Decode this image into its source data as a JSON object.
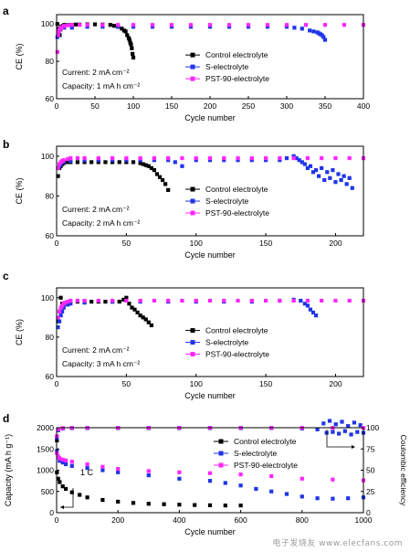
{
  "colors": {
    "control": "#000000",
    "s": "#1f35e6",
    "pst": "#ff26ff",
    "axis": "#000000"
  },
  "watermark": "电子发烧友 www.elecfans.com",
  "chart_data": [
    {
      "panel": "a",
      "type": "scatter",
      "xlabel": "Cycle number",
      "ylabel": "CE (%)",
      "xlim": [
        0,
        400
      ],
      "ylim": [
        60,
        105
      ],
      "xticks": [
        0,
        50,
        100,
        150,
        200,
        250,
        300,
        350,
        400
      ],
      "yticks": [
        60,
        80,
        100
      ],
      "notes": [
        "Current: 2 mA cm⁻²",
        "Capacity: 1 mA h cm⁻²"
      ],
      "legend_position": "right-center",
      "series": [
        {
          "name": "Control electrolyte",
          "key": "control",
          "x": [
            1,
            2,
            3,
            4,
            5,
            6,
            8,
            10,
            15,
            20,
            25,
            30,
            40,
            50,
            60,
            70,
            75,
            80,
            85,
            88,
            90,
            92,
            94,
            95,
            96,
            97,
            98,
            99,
            100
          ],
          "y": [
            100,
            96,
            97.5,
            94,
            97,
            98.5,
            99,
            99.5,
            99.5,
            99.5,
            99.7,
            99.7,
            99.8,
            99.8,
            99.7,
            99.5,
            99,
            98.5,
            97.5,
            96.5,
            96,
            94,
            92.5,
            91.5,
            90,
            89,
            87,
            84,
            82
          ]
        },
        {
          "name": "S-electrolyte",
          "key": "s",
          "x": [
            1,
            2,
            3,
            5,
            10,
            20,
            40,
            60,
            80,
            100,
            125,
            150,
            175,
            200,
            225,
            250,
            275,
            300,
            310,
            320,
            330,
            335,
            340,
            342,
            344,
            346,
            348,
            350
          ],
          "y": [
            93,
            95,
            96.5,
            97.5,
            98,
            98,
            98.5,
            98.5,
            98.5,
            98.5,
            98.5,
            98.5,
            98.5,
            98.5,
            98.5,
            98.5,
            98.5,
            98.5,
            98,
            97.5,
            96.5,
            96,
            95.5,
            95,
            94.5,
            94,
            93,
            91.5
          ]
        },
        {
          "name": "PST-90-electrolyte",
          "key": "pst",
          "x": [
            1,
            2,
            3,
            4,
            5,
            6,
            8,
            10,
            15,
            20,
            30,
            40,
            60,
            80,
            100,
            125,
            150,
            175,
            200,
            225,
            250,
            275,
            300,
            325,
            350,
            375,
            400
          ],
          "y": [
            85,
            94,
            96,
            97,
            97.5,
            98,
            98.5,
            99,
            99.3,
            99.5,
            99.5,
            99.5,
            99.5,
            99.5,
            99.5,
            99.5,
            99.5,
            99.5,
            99.5,
            99.5,
            99.5,
            99.5,
            99.5,
            99.5,
            99.5,
            99.5,
            99.5
          ]
        }
      ]
    },
    {
      "panel": "b",
      "type": "scatter",
      "xlabel": "Cycle number",
      "ylabel": "CE (%)",
      "xlim": [
        0,
        220
      ],
      "ylim": [
        60,
        105
      ],
      "xticks": [
        0,
        50,
        100,
        150,
        200
      ],
      "yticks": [
        60,
        80,
        100
      ],
      "notes": [
        "Current: 2 mA cm⁻²",
        "Capacity: 2 mA h cm⁻²"
      ],
      "legend_position": "right-center",
      "series": [
        {
          "name": "Control electrolyte",
          "key": "control",
          "x": [
            1,
            2,
            3,
            4,
            5,
            6,
            8,
            10,
            15,
            20,
            25,
            30,
            35,
            40,
            45,
            50,
            55,
            60,
            62,
            64,
            66,
            68,
            70,
            72,
            74,
            76,
            78,
            80
          ],
          "y": [
            90,
            94,
            95,
            96,
            96.5,
            97,
            97,
            97,
            97,
            97,
            97,
            97,
            97,
            97,
            97,
            97,
            97,
            96.5,
            96,
            95.5,
            95,
            94,
            93,
            91,
            89.5,
            88,
            86,
            83
          ]
        },
        {
          "name": "S-electrolyte",
          "key": "s",
          "x": [
            1,
            2,
            3,
            5,
            10,
            20,
            30,
            40,
            50,
            60,
            70,
            80,
            85,
            90,
            100,
            110,
            120,
            130,
            140,
            150,
            160,
            165,
            170,
            172,
            174,
            176,
            178,
            180,
            182,
            184,
            186,
            188,
            190,
            192,
            194,
            196,
            198,
            200,
            202,
            204,
            206,
            208,
            210,
            212
          ],
          "y": [
            94,
            95,
            96,
            97,
            97.5,
            98,
            98,
            98,
            98,
            98,
            98,
            98,
            97,
            95,
            98,
            98,
            98,
            98,
            98,
            98,
            98,
            99,
            100,
            99,
            98,
            97,
            96,
            94,
            95,
            92,
            93,
            90,
            94,
            88,
            92,
            89,
            93,
            87,
            91,
            88,
            90,
            86,
            89,
            84
          ]
        },
        {
          "name": "PST-90-electrolyte",
          "key": "pst",
          "x": [
            1,
            2,
            3,
            4,
            5,
            8,
            10,
            15,
            20,
            30,
            40,
            50,
            60,
            70,
            80,
            90,
            100,
            110,
            120,
            130,
            140,
            150,
            160,
            170,
            180,
            190,
            200,
            210,
            220
          ],
          "y": [
            94,
            96,
            97,
            97.5,
            98,
            98.5,
            99,
            99,
            99,
            99,
            99,
            99,
            99,
            99,
            99,
            99,
            99,
            99,
            99,
            99,
            99,
            99,
            99,
            99,
            99,
            99,
            99,
            99,
            99
          ]
        }
      ]
    },
    {
      "panel": "c",
      "type": "scatter",
      "xlabel": "Cycle number",
      "ylabel": "CE (%)",
      "xlim": [
        0,
        220
      ],
      "ylim": [
        60,
        105
      ],
      "xticks": [
        0,
        50,
        100,
        150,
        200
      ],
      "yticks": [
        60,
        80,
        100
      ],
      "notes": [
        "Current: 2 mA cm⁻²",
        "Capacity: 3 mA h cm⁻²"
      ],
      "legend_position": "right-center",
      "series": [
        {
          "name": "Control electrolyte",
          "key": "control",
          "x": [
            1,
            2,
            3,
            4,
            5,
            6,
            8,
            10,
            15,
            20,
            25,
            30,
            35,
            40,
            45,
            48,
            50,
            52,
            54,
            56,
            58,
            60,
            62,
            64,
            66,
            68
          ],
          "y": [
            88,
            93,
            100,
            97,
            95,
            97,
            97.5,
            98,
            98,
            98,
            98,
            98,
            98,
            98,
            98,
            99,
            100,
            97,
            95,
            94,
            92.5,
            91,
            90,
            89,
            87.5,
            86
          ]
        },
        {
          "name": "S-electrolyte",
          "key": "s",
          "x": [
            1,
            2,
            3,
            4,
            5,
            8,
            10,
            20,
            40,
            60,
            80,
            100,
            120,
            140,
            160,
            170,
            175,
            178,
            180,
            182,
            184,
            186
          ],
          "y": [
            85,
            88,
            91,
            93,
            95,
            96.5,
            97,
            97.5,
            98,
            98,
            98,
            98,
            98,
            98,
            98.5,
            99,
            98.5,
            97,
            96,
            94,
            92.5,
            91
          ]
        },
        {
          "name": "PST-90-electrolyte",
          "key": "pst",
          "x": [
            1,
            2,
            3,
            4,
            5,
            6,
            8,
            10,
            15,
            20,
            30,
            40,
            50,
            60,
            70,
            80,
            90,
            100,
            110,
            120,
            130,
            140,
            150,
            160,
            170,
            180,
            190,
            200,
            210,
            220
          ],
          "y": [
            90,
            93,
            95,
            96,
            97,
            97.5,
            98,
            98.5,
            98.5,
            98.5,
            98.5,
            98.5,
            98.5,
            98.5,
            98.5,
            98.5,
            98.5,
            98.5,
            98.5,
            98.5,
            98.5,
            98.5,
            98.5,
            98.5,
            98.5,
            98.5,
            98.5,
            98.5,
            98.5,
            98.5
          ]
        }
      ]
    },
    {
      "panel": "d",
      "type": "scatter",
      "xlabel": "Cycle number",
      "ylabel": "Capacity (mA h g⁻¹)",
      "ylabel_right": "Coulombic efficiency",
      "xlim": [
        0,
        1000
      ],
      "ylim": [
        0,
        2000
      ],
      "ylim_right": [
        0,
        100
      ],
      "xticks": [
        0,
        200,
        400,
        600,
        800,
        1000
      ],
      "yticks": [
        0,
        500,
        1000,
        1500,
        2000
      ],
      "yticks_right": [
        0,
        25,
        50,
        75,
        100
      ],
      "notes": [
        "1 C"
      ],
      "legend_position": "top-right",
      "capacity_series": [
        {
          "name": "Control electrolyte",
          "key": "control",
          "x": [
            1,
            5,
            10,
            20,
            30,
            50,
            75,
            100,
            150,
            200,
            250,
            300,
            350,
            400,
            450,
            500,
            550,
            600
          ],
          "y": [
            950,
            800,
            720,
            620,
            560,
            480,
            420,
            360,
            300,
            260,
            230,
            210,
            200,
            190,
            180,
            175,
            170,
            170
          ]
        },
        {
          "name": "S-electrolyte",
          "key": "s",
          "x": [
            1,
            5,
            10,
            20,
            30,
            50,
            100,
            150,
            200,
            300,
            400,
            500,
            550,
            600,
            650,
            700,
            750,
            800,
            850,
            900,
            950,
            1000
          ],
          "y": [
            1450,
            1300,
            1220,
            1180,
            1140,
            1100,
            1050,
            1000,
            950,
            880,
            800,
            750,
            700,
            640,
            560,
            500,
            440,
            380,
            340,
            330,
            340,
            360
          ]
        },
        {
          "name": "PST-90-electrolyte",
          "key": "pst",
          "x": [
            1,
            5,
            10,
            20,
            30,
            50,
            100,
            150,
            200,
            300,
            400,
            500,
            600,
            700,
            800,
            900,
            1000
          ],
          "y": [
            1400,
            1320,
            1280,
            1250,
            1230,
            1200,
            1140,
            1080,
            1030,
            980,
            950,
            930,
            900,
            860,
            800,
            780,
            760
          ]
        }
      ],
      "ce_series": [
        {
          "name": "Control electrolyte",
          "key": "control",
          "x": [
            1,
            5,
            20,
            50,
            100,
            200,
            300,
            400,
            500,
            600
          ],
          "y": [
            85,
            97,
            99,
            99.5,
            99.5,
            99.5,
            99.5,
            99.5,
            99.5,
            99.5
          ]
        },
        {
          "name": "S-electrolyte",
          "key": "s",
          "x": [
            1,
            5,
            20,
            50,
            100,
            200,
            300,
            400,
            500,
            600,
            700,
            800,
            850,
            870,
            880,
            890,
            900,
            910,
            920,
            930,
            940,
            950,
            960,
            970,
            980,
            990,
            1000
          ],
          "y": [
            88,
            97,
            99,
            99.5,
            99.5,
            99.5,
            99.5,
            99.5,
            99.5,
            99.5,
            99.5,
            99,
            98,
            105,
            94,
            108,
            95,
            104,
            93,
            107,
            96,
            102,
            92,
            106,
            95,
            103,
            94
          ]
        },
        {
          "name": "PST-90-electrolyte",
          "key": "pst",
          "x": [
            1,
            5,
            20,
            50,
            100,
            200,
            300,
            400,
            500,
            600,
            700,
            800,
            900,
            1000
          ],
          "y": [
            90,
            98,
            99.5,
            99.8,
            99.8,
            99.8,
            99.8,
            99.8,
            99.8,
            99.8,
            99.8,
            99.8,
            99.8,
            99.8
          ]
        }
      ]
    }
  ]
}
